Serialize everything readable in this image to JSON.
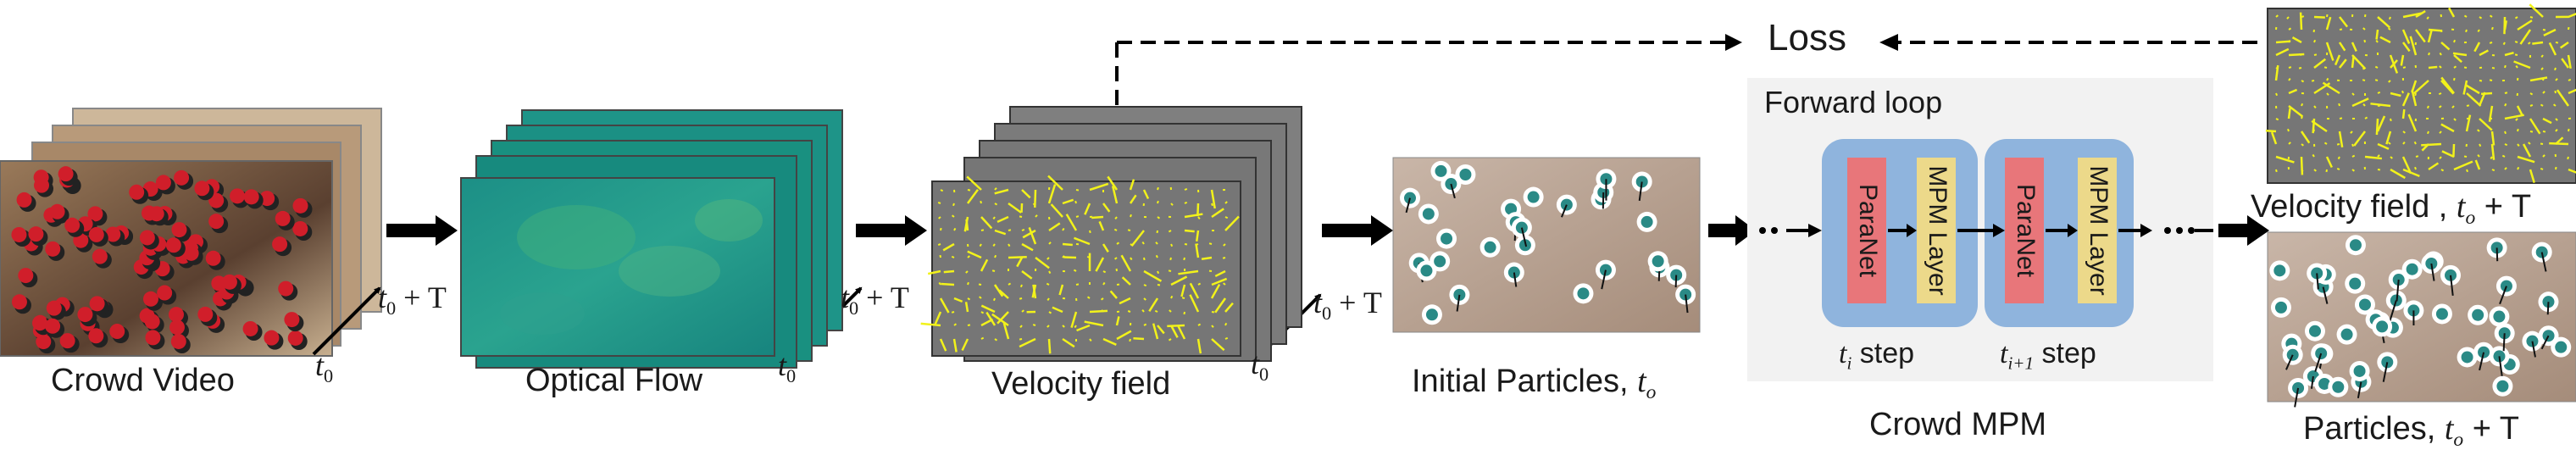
{
  "labels": {
    "crowd_video": "Crowd Video",
    "optical_flow": "Optical Flow",
    "velocity_field": "Velocity field",
    "initial_particles": "Initial Particles, ",
    "forward_loop": "Forward loop",
    "crowd_mpm": "Crowd MPM",
    "loss": "Loss",
    "velocity_field_T": "Velocity field , ",
    "particles_T": "Particles, ",
    "paranet": "ParaNet",
    "mpm_layer": "MPM Layer",
    "step": "step"
  },
  "time": {
    "t": "t",
    "sub0": "0",
    "subo": "o",
    "subi": "i",
    "subi1": "i+1",
    "plusT": " + T"
  },
  "colors": {
    "crowd_bg": "#7a5a3c",
    "flow": "#1f9a86",
    "velocity_bg": "#7a7a7a",
    "arrows": "#f2f21a",
    "particles": "#2a8a86",
    "forward_bg": "#f2f2f2",
    "step_bg": "#8fb4dd",
    "paranet": "#e8767a",
    "mpm_layer": "#ecd98a"
  }
}
